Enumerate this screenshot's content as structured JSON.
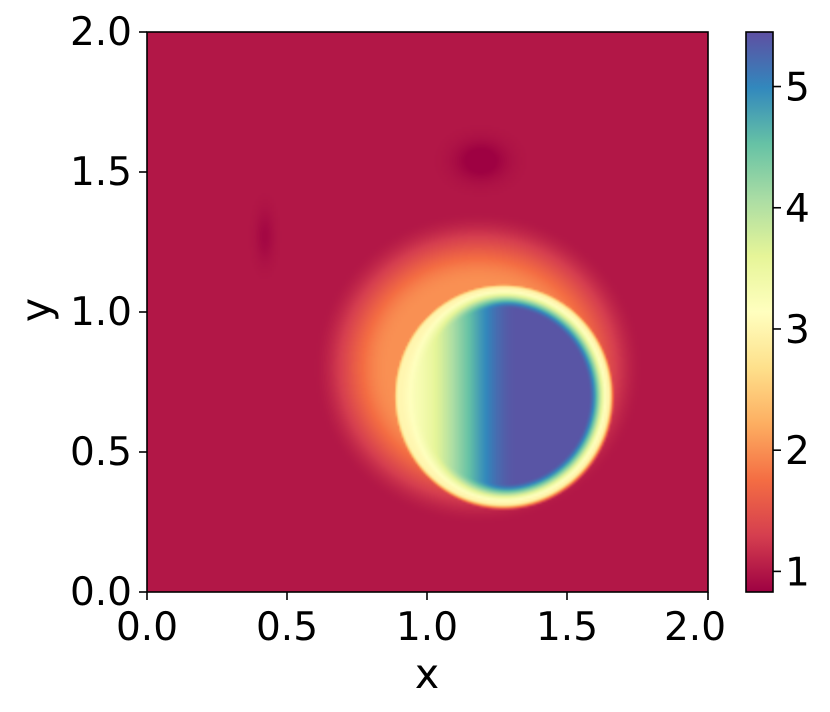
{
  "chart_data": {
    "type": "heatmap",
    "title": "",
    "xlabel": "x",
    "ylabel": "y",
    "xlim": [
      0.0,
      2.0
    ],
    "ylim": [
      0.0,
      2.0
    ],
    "x_ticks": [
      "0.0",
      "0.5",
      "1.0",
      "1.5",
      "2.0"
    ],
    "y_ticks": [
      "0.0",
      "0.5",
      "1.0",
      "1.5",
      "2.0"
    ],
    "x_tick_values": [
      0.0,
      0.5,
      1.0,
      1.5,
      2.0
    ],
    "y_tick_values": [
      0.0,
      0.5,
      1.0,
      1.5,
      2.0
    ],
    "colormap": "Spectral",
    "colorbar": {
      "range": [
        0.83,
        5.45
      ],
      "ticks": [
        "1",
        "2",
        "3",
        "4",
        "5"
      ],
      "tick_values": [
        1,
        2,
        3,
        4,
        5
      ],
      "placement": "right"
    },
    "field": {
      "background_value": 1.0,
      "features": [
        {
          "kind": "disk",
          "center": [
            1.27,
            0.7
          ],
          "radius": 0.4,
          "value": 5.4,
          "rim_value": 3.0
        },
        {
          "kind": "halo",
          "center": [
            1.18,
            0.8
          ],
          "radius": 0.56,
          "value": 2.0
        },
        {
          "kind": "spot",
          "center": [
            1.19,
            1.54
          ],
          "radius": 0.06,
          "value": 0.85
        },
        {
          "kind": "streak",
          "center": [
            0.42,
            1.27
          ],
          "radius": 0.05,
          "value": 0.9
        }
      ]
    },
    "grid": false,
    "legend": "none"
  },
  "colors": {
    "background": "#9e0142",
    "spectral_stops": [
      "#9e0142",
      "#d53e4f",
      "#f46d43",
      "#fdae61",
      "#fee08b",
      "#ffffbf",
      "#e6f598",
      "#abdda4",
      "#66c2a5",
      "#3288bd",
      "#5e4fa2"
    ]
  }
}
